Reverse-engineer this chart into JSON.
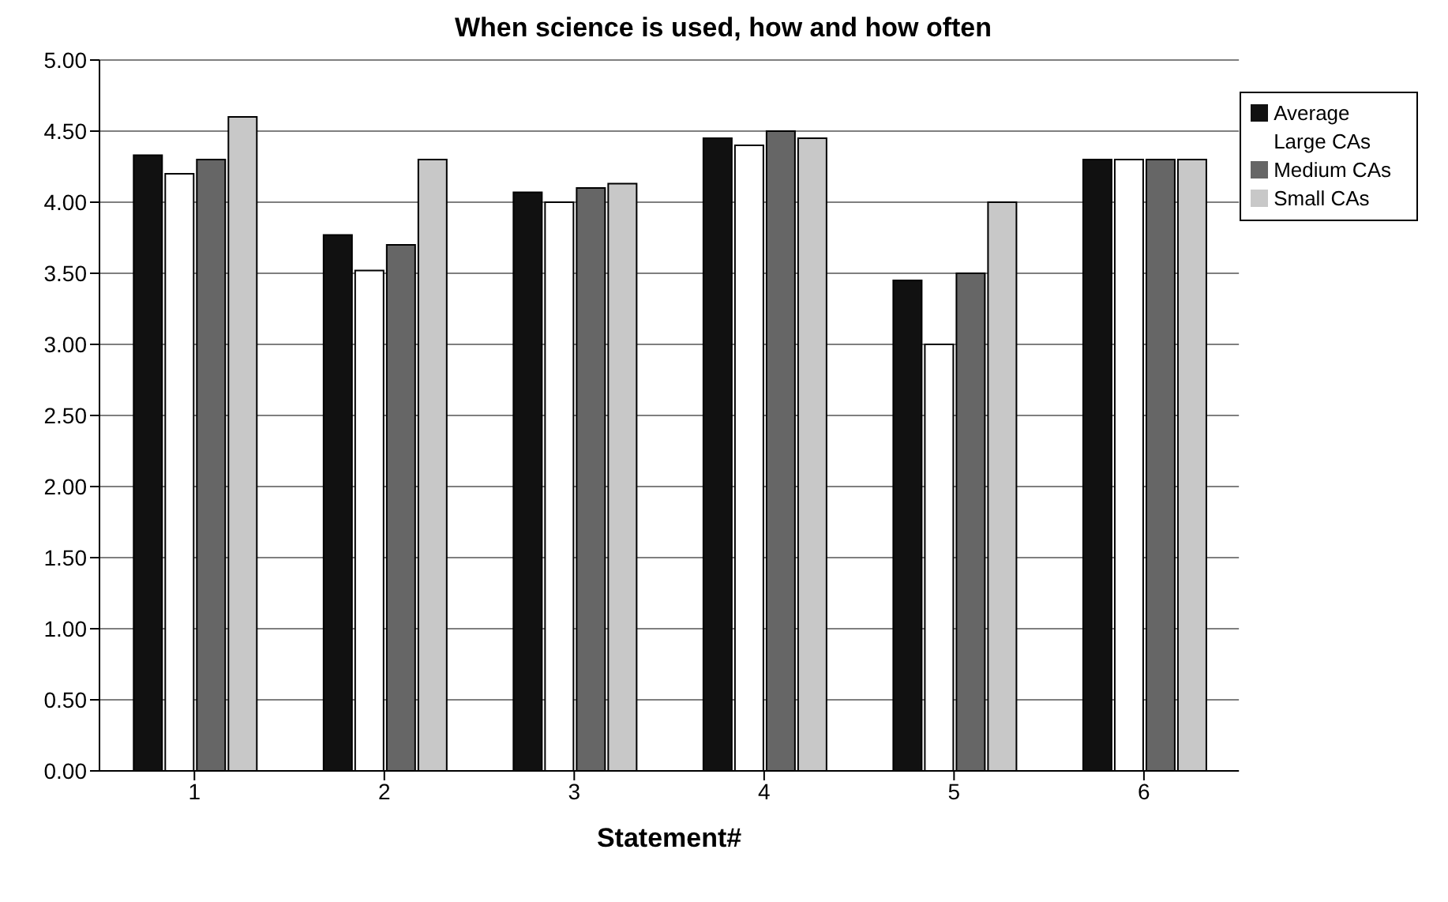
{
  "chart_data": {
    "type": "bar",
    "title": "When science is used, how and how often",
    "xlabel": "Statement#",
    "categories": [
      "1",
      "2",
      "3",
      "4",
      "5",
      "6"
    ],
    "series": [
      {
        "name": "Average",
        "color": "#111111",
        "values": [
          4.33,
          3.77,
          4.07,
          4.45,
          3.45,
          4.3
        ]
      },
      {
        "name": "Large CAs",
        "color": "#ffffff",
        "values": [
          4.2,
          3.52,
          4.0,
          4.4,
          3.0,
          4.3
        ]
      },
      {
        "name": "Medium CAs",
        "color": "#666666",
        "values": [
          4.3,
          3.7,
          4.1,
          4.5,
          3.5,
          4.3
        ]
      },
      {
        "name": "Small CAs",
        "color": "#c8c8c8",
        "values": [
          4.6,
          4.3,
          4.13,
          4.45,
          4.0,
          4.3
        ]
      }
    ],
    "ylim": [
      0,
      5
    ],
    "yticks": [
      {
        "value": 0,
        "label": "0.00"
      },
      {
        "value": 0.5,
        "label": "0.50"
      },
      {
        "value": 1,
        "label": "1.00"
      },
      {
        "value": 1.5,
        "label": "1.50"
      },
      {
        "value": 2,
        "label": "2.00"
      },
      {
        "value": 2.5,
        "label": "2.50"
      },
      {
        "value": 3,
        "label": "3.00"
      },
      {
        "value": 3.5,
        "label": "3.50"
      },
      {
        "value": 4,
        "label": "4.00"
      },
      {
        "value": 4.5,
        "label": "4.50"
      },
      {
        "value": 5,
        "label": "5.00"
      }
    ],
    "grid": "y",
    "legend": "right"
  }
}
